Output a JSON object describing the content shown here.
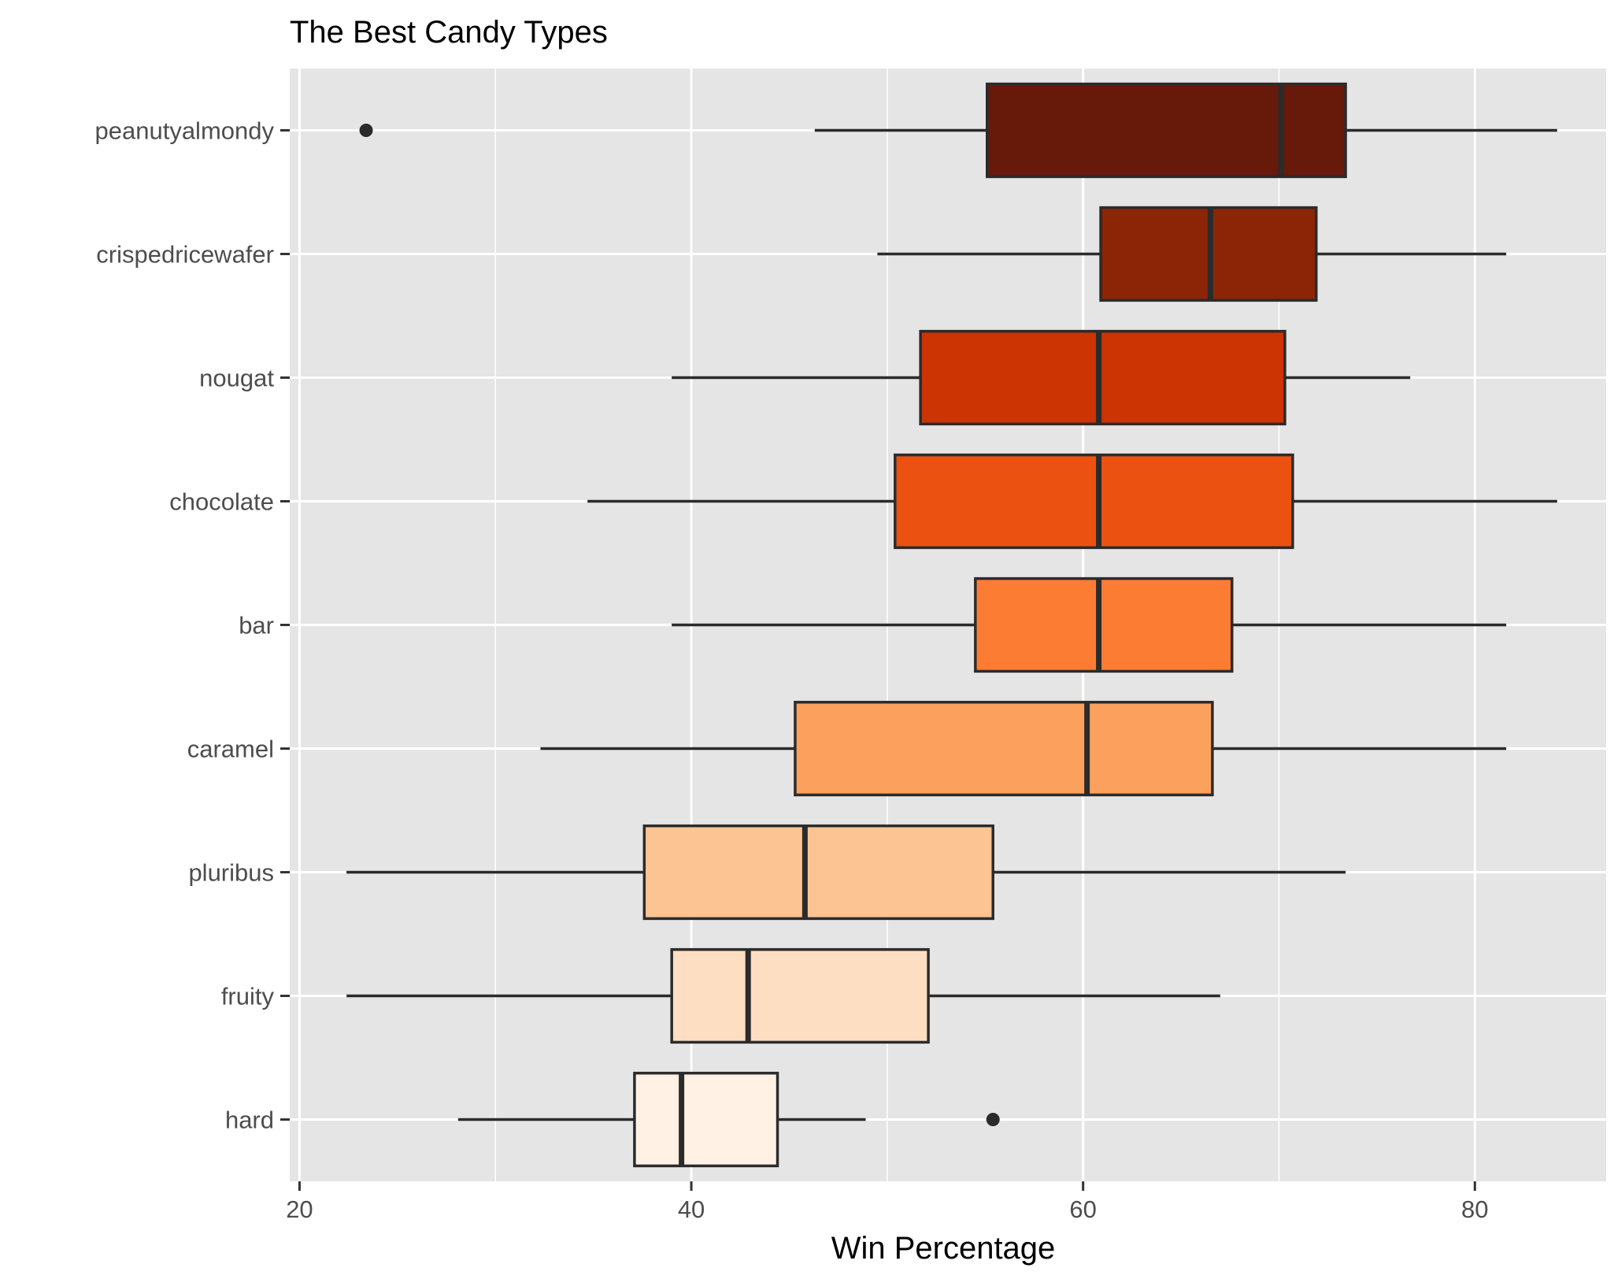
{
  "chart_data": {
    "type": "boxplot",
    "orientation": "horizontal",
    "title": "The Best Candy Types",
    "xlabel": "Win Percentage",
    "ylabel": "",
    "xlim": [
      19.5,
      86.7
    ],
    "x_ticks": [
      20,
      40,
      60,
      80
    ],
    "x_ticks_minor": [
      30,
      50,
      70
    ],
    "grid": true,
    "legend": "none",
    "panel_color": "#e5e5e5",
    "box_outline_color": "#2b2b2b",
    "categories": [
      "peanutyalmondy",
      "crispedricewafer",
      "nougat",
      "chocolate",
      "bar",
      "caramel",
      "pluribus",
      "fruity",
      "hard"
    ],
    "series": [
      {
        "category": "peanutyalmondy",
        "whisker_low": 46.3,
        "q1": 55.1,
        "median": 70.1,
        "q3": 73.4,
        "whisker_high": 84.2,
        "outliers": [
          23.4
        ],
        "fill": "#67190a"
      },
      {
        "category": "crispedricewafer",
        "whisker_low": 49.5,
        "q1": 60.9,
        "median": 66.5,
        "q3": 71.9,
        "whisker_high": 81.6,
        "outliers": [],
        "fill": "#8c2505"
      },
      {
        "category": "nougat",
        "whisker_low": 39.0,
        "q1": 51.7,
        "median": 60.8,
        "q3": 70.3,
        "whisker_high": 76.7,
        "outliers": [],
        "fill": "#cc3404"
      },
      {
        "category": "chocolate",
        "whisker_low": 34.7,
        "q1": 50.4,
        "median": 60.8,
        "q3": 70.7,
        "whisker_high": 84.2,
        "outliers": [],
        "fill": "#eb5212"
      },
      {
        "category": "bar",
        "whisker_low": 39.0,
        "q1": 54.5,
        "median": 60.8,
        "q3": 67.6,
        "whisker_high": 81.6,
        "outliers": [],
        "fill": "#fd7c34"
      },
      {
        "category": "caramel",
        "whisker_low": 32.3,
        "q1": 45.3,
        "median": 60.2,
        "q3": 66.6,
        "whisker_high": 81.6,
        "outliers": [],
        "fill": "#fca05e"
      },
      {
        "category": "pluribus",
        "whisker_low": 22.4,
        "q1": 37.6,
        "median": 45.8,
        "q3": 55.4,
        "whisker_high": 73.4,
        "outliers": [],
        "fill": "#fcc493"
      },
      {
        "category": "fruity",
        "whisker_low": 22.4,
        "q1": 39.0,
        "median": 42.9,
        "q3": 52.1,
        "whisker_high": 67.0,
        "outliers": [],
        "fill": "#fddec3"
      },
      {
        "category": "hard",
        "whisker_low": 28.1,
        "q1": 37.1,
        "median": 39.5,
        "q3": 44.4,
        "whisker_high": 48.9,
        "outliers": [
          55.4
        ],
        "fill": "#fff2e5"
      }
    ]
  }
}
